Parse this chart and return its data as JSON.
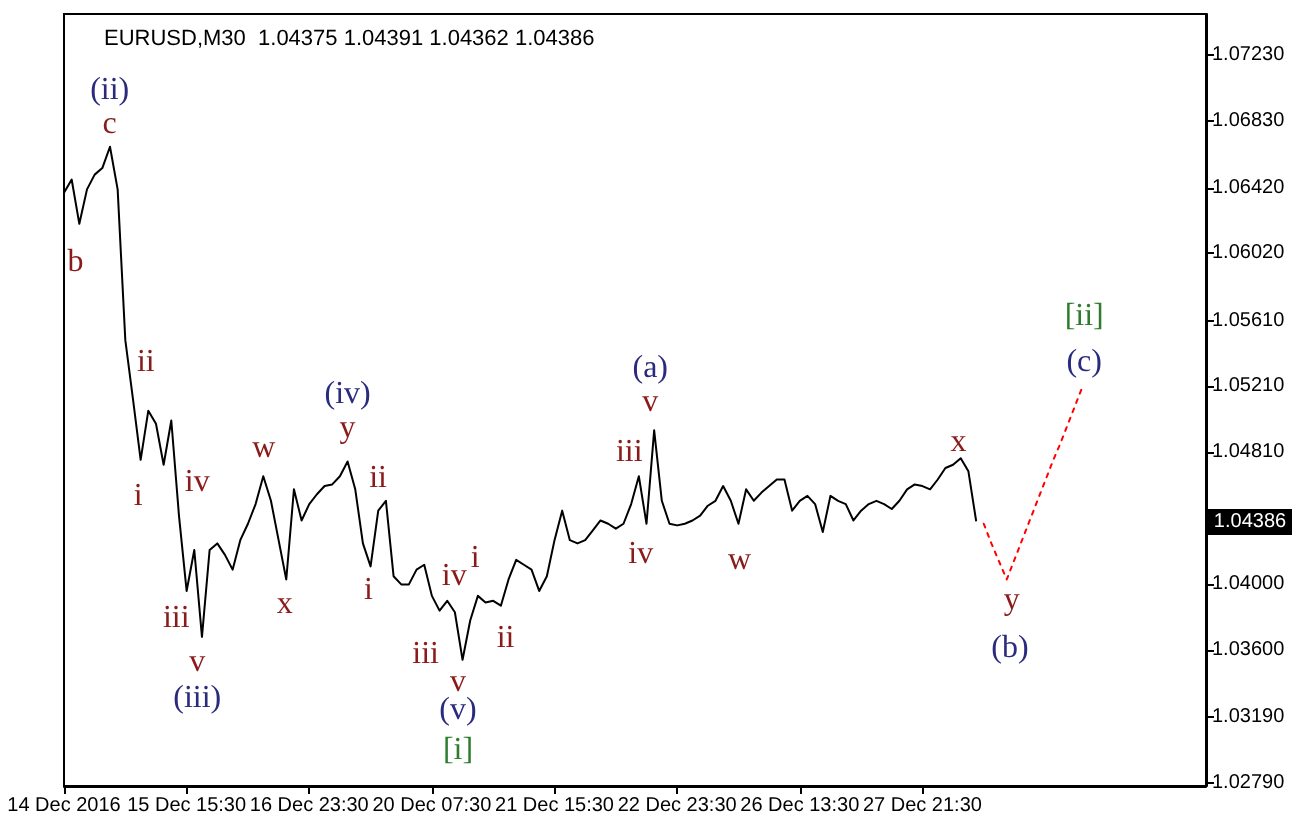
{
  "chart_data": {
    "type": "line",
    "title": "EURUSD,M30  1.04375 1.04391 1.04362 1.04386",
    "categories": [
      "14 Dec 2016",
      null,
      null,
      null,
      null,
      null,
      null,
      null,
      null,
      null,
      null,
      null,
      null,
      null,
      null,
      null,
      "15 Dec 15:30",
      null,
      null,
      null,
      null,
      null,
      null,
      null,
      null,
      null,
      null,
      null,
      null,
      null,
      null,
      null,
      "16 Dec 23:30",
      null,
      null,
      null,
      null,
      null,
      null,
      null,
      null,
      null,
      null,
      null,
      null,
      null,
      null,
      null,
      "20 Dec 07:30",
      null,
      null,
      null,
      null,
      null,
      null,
      null,
      null,
      null,
      null,
      null,
      null,
      null,
      null,
      null,
      "21 Dec 15:30",
      null,
      null,
      null,
      null,
      null,
      null,
      null,
      null,
      null,
      null,
      null,
      null,
      null,
      null,
      null,
      "22 Dec 23:30",
      null,
      null,
      null,
      null,
      null,
      null,
      null,
      null,
      null,
      null,
      null,
      null,
      null,
      null,
      null,
      "26 Dec 13:30",
      null,
      null,
      null,
      null,
      null,
      null,
      null,
      null,
      null,
      null,
      null,
      null,
      null,
      null,
      null,
      "27 Dec 21:30",
      null,
      null,
      null,
      null,
      null,
      null,
      null,
      null,
      null,
      null,
      null,
      null,
      null,
      null,
      null,
      null,
      null,
      null,
      null,
      null,
      null,
      null,
      null,
      null,
      null,
      null,
      null,
      null,
      null,
      null,
      null,
      null,
      null,
      null,
      null,
      null,
      null
    ],
    "ylim": [
      1.0277,
      1.0748
    ],
    "yticks": [
      {
        "value": 1.0279,
        "label": "1.02790"
      },
      {
        "value": 1.0319,
        "label": "1.03190"
      },
      {
        "value": 1.036,
        "label": "1.03600"
      },
      {
        "value": 1.04,
        "label": "1.04000"
      },
      {
        "value": 1.0481,
        "label": "1.04810"
      },
      {
        "value": 1.0521,
        "label": "1.05210"
      },
      {
        "value": 1.0561,
        "label": "1.05610"
      },
      {
        "value": 1.0602,
        "label": "1.06020"
      },
      {
        "value": 1.0642,
        "label": "1.06420"
      },
      {
        "value": 1.0683,
        "label": "1.06830"
      },
      {
        "value": 1.0723,
        "label": "1.07230"
      }
    ],
    "grid": false,
    "marker": "none",
    "series": [
      {
        "color": "#000000",
        "line_style": "solid",
        "values": [
          1.0639,
          1.0647,
          1.062,
          1.0641,
          1.065,
          1.0654,
          1.0667,
          1.0641,
          1.0549,
          1.0513,
          1.0476,
          1.0506,
          1.0498,
          1.0473,
          1.05,
          1.0442,
          1.0396,
          1.0421,
          1.0368,
          1.0421,
          1.0425,
          1.0418,
          1.0409,
          1.0427,
          1.0437,
          1.0449,
          1.0466,
          1.0451,
          1.0427,
          1.0403,
          1.0458,
          1.0439,
          1.0449,
          1.0455,
          1.046,
          1.0461,
          1.0466,
          1.0475,
          1.0458,
          1.0425,
          1.0411,
          1.0445,
          1.0451,
          1.0405,
          1.04,
          1.04,
          1.0409,
          1.0412,
          1.0393,
          1.0384,
          1.039,
          1.0383,
          1.0354,
          1.0378,
          1.0393,
          1.0389,
          1.039,
          1.0387,
          1.0403,
          1.0415,
          1.0412,
          1.0409,
          1.0396,
          1.0405,
          1.0427,
          1.0445,
          1.0427,
          1.0425,
          1.0427,
          1.0433,
          1.0439,
          1.0437,
          1.0434,
          1.0437,
          1.0449,
          1.0466,
          1.0437,
          1.0494,
          1.0451,
          1.0437,
          1.0436,
          1.0437,
          1.0439,
          1.0442,
          1.0448,
          1.0451,
          1.046,
          1.0451,
          1.0437,
          1.0458,
          1.0451,
          1.0456,
          1.046,
          1.0464,
          1.0464,
          1.0445,
          1.0451,
          1.0454,
          1.0449,
          1.0432,
          1.0454,
          1.0451,
          1.0449,
          1.0439,
          1.0445,
          1.0449,
          1.0451,
          1.0449,
          1.0446,
          1.0451,
          1.0458,
          1.0461,
          1.046,
          1.0458,
          1.0464,
          1.0471,
          1.0473,
          1.0477,
          1.0469,
          1.0439,
          null,
          null,
          null,
          null,
          null,
          null,
          null,
          null,
          null,
          null,
          null,
          null,
          null,
          null,
          null,
          null,
          null,
          null,
          null,
          null,
          null,
          null,
          null,
          null,
          null,
          null,
          null,
          null,
          null,
          null
        ]
      },
      {
        "color": "#ff0000",
        "line_style": "dotted",
        "values": [
          null,
          null,
          null,
          null,
          null,
          null,
          null,
          null,
          null,
          null,
          null,
          null,
          null,
          null,
          null,
          null,
          null,
          null,
          null,
          null,
          null,
          null,
          null,
          null,
          null,
          null,
          null,
          null,
          null,
          null,
          null,
          null,
          null,
          null,
          null,
          null,
          null,
          null,
          null,
          null,
          null,
          null,
          null,
          null,
          null,
          null,
          null,
          null,
          null,
          null,
          null,
          null,
          null,
          null,
          null,
          null,
          null,
          null,
          null,
          null,
          null,
          null,
          null,
          null,
          null,
          null,
          null,
          null,
          null,
          null,
          null,
          null,
          null,
          null,
          null,
          null,
          null,
          null,
          null,
          null,
          null,
          null,
          null,
          null,
          null,
          null,
          null,
          null,
          null,
          null,
          null,
          null,
          null,
          null,
          null,
          null,
          null,
          null,
          null,
          null,
          null,
          null,
          null,
          null,
          null,
          null,
          null,
          null,
          null,
          null,
          null,
          null,
          null,
          null,
          null,
          null,
          null,
          null,
          null,
          null,
          1.0437,
          1.0425,
          1.0414,
          1.0403,
          1.0415,
          1.0427,
          1.0439,
          1.0451,
          1.0463,
          1.0475,
          1.0486,
          1.0498,
          1.051,
          1.0522,
          null,
          null,
          null,
          null,
          null,
          null,
          null,
          null,
          null,
          null,
          null,
          null,
          null,
          null,
          null,
          null
        ]
      }
    ],
    "annotations": [
      "(ii)",
      "c",
      "b",
      "ii",
      "i",
      "iv",
      "iii",
      "v",
      "(iii)",
      "w",
      "x",
      "(iv)",
      "y",
      "ii",
      "i",
      "iii",
      "iv",
      "i",
      "ii",
      "v",
      "(v)",
      "[i]",
      "(a)",
      "v",
      "iii",
      "iv",
      "w",
      "x",
      "y",
      "(b)",
      "[ii]",
      "(c)",
      "1.04386"
    ]
  }
}
